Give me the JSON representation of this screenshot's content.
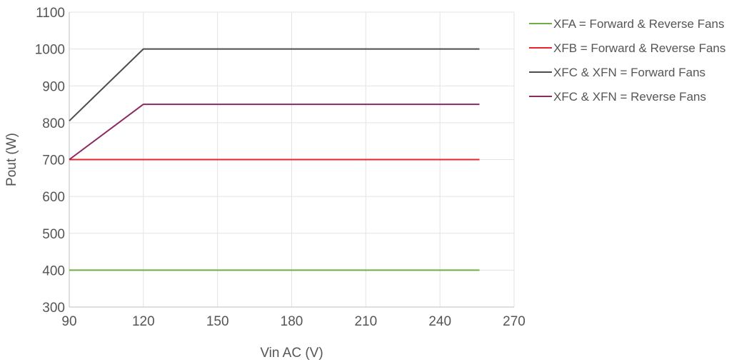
{
  "chart_data": {
    "type": "line",
    "title": "",
    "xlabel": "Vin AC (V)",
    "ylabel": "Pout (W)",
    "xlim": [
      90,
      270
    ],
    "ylim": [
      300,
      1100
    ],
    "xticks": [
      90,
      120,
      150,
      180,
      210,
      240,
      270
    ],
    "yticks": [
      300,
      400,
      500,
      600,
      700,
      800,
      900,
      1000,
      1100
    ],
    "grid": true,
    "legend_position": "right",
    "series": [
      {
        "name": "XFA = Forward & Reverse Fans",
        "color": "#70ad47",
        "points": [
          [
            90,
            400
          ],
          [
            120,
            400
          ],
          [
            256,
            400
          ]
        ]
      },
      {
        "name": "XFB = Forward & Reverse Fans",
        "color": "#e8252a",
        "points": [
          [
            90,
            700
          ],
          [
            120,
            700
          ],
          [
            256,
            700
          ]
        ]
      },
      {
        "name": "XFC & XFN = Forward Fans",
        "color": "#4d4d4f",
        "points": [
          [
            90,
            805
          ],
          [
            120,
            1000
          ],
          [
            256,
            1000
          ]
        ]
      },
      {
        "name": "XFC & XFN = Reverse Fans",
        "color": "#8b2b62",
        "points": [
          [
            90,
            700
          ],
          [
            120,
            850
          ],
          [
            256,
            850
          ]
        ]
      }
    ]
  }
}
